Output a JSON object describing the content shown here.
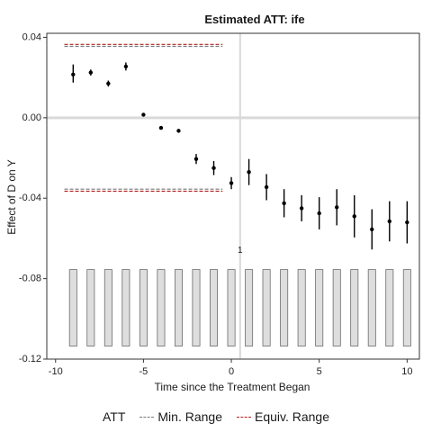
{
  "chart_data": {
    "type": "scatter",
    "title": "Estimated ATT: ife",
    "xlabel": "Time since the Treatment Began",
    "ylabel": "Effect of D on Y",
    "xlim": [
      -10.5,
      10.7
    ],
    "ylim": [
      -0.12,
      0.042
    ],
    "x_ticks": [
      -10,
      -5,
      0,
      5,
      10
    ],
    "x_tick_labels": [
      "-10",
      "-5",
      "0",
      "5",
      "10"
    ],
    "y_ticks": [
      0.04,
      0.0,
      -0.04,
      -0.08,
      -0.12
    ],
    "y_tick_labels": [
      "0.04",
      "0.00",
      "-0.04",
      "-0.08",
      "-0.12"
    ],
    "grid": false,
    "points": [
      {
        "x": -9,
        "y": 0.0215,
        "lo": 0.0175,
        "hi": 0.0265
      },
      {
        "x": -8,
        "y": 0.0225,
        "lo": 0.021,
        "hi": 0.024
      },
      {
        "x": -7,
        "y": 0.017,
        "lo": 0.0155,
        "hi": 0.0185
      },
      {
        "x": -6,
        "y": 0.0255,
        "lo": 0.0235,
        "hi": 0.0275
      },
      {
        "x": -5,
        "y": 0.0015,
        "lo": 0.001,
        "hi": 0.002
      },
      {
        "x": -4,
        "y": -0.005,
        "lo": -0.0055,
        "hi": -0.0045
      },
      {
        "x": -3,
        "y": -0.0065,
        "lo": -0.007,
        "hi": -0.006
      },
      {
        "x": -2,
        "y": -0.0205,
        "lo": -0.023,
        "hi": -0.018
      },
      {
        "x": -1,
        "y": -0.025,
        "lo": -0.0285,
        "hi": -0.0215
      },
      {
        "x": 0,
        "y": -0.0325,
        "lo": -0.0355,
        "hi": -0.0295
      },
      {
        "x": 1,
        "y": -0.027,
        "lo": -0.0335,
        "hi": -0.0205
      },
      {
        "x": 2,
        "y": -0.0345,
        "lo": -0.041,
        "hi": -0.028
      },
      {
        "x": 3,
        "y": -0.0425,
        "lo": -0.0495,
        "hi": -0.0355
      },
      {
        "x": 4,
        "y": -0.045,
        "lo": -0.0515,
        "hi": -0.0385
      },
      {
        "x": 5,
        "y": -0.0475,
        "lo": -0.0555,
        "hi": -0.0395
      },
      {
        "x": 6,
        "y": -0.0445,
        "lo": -0.0535,
        "hi": -0.0355
      },
      {
        "x": 7,
        "y": -0.049,
        "lo": -0.0595,
        "hi": -0.0385
      },
      {
        "x": 8,
        "y": -0.0555,
        "lo": -0.0655,
        "hi": -0.0455
      },
      {
        "x": 9,
        "y": -0.0515,
        "lo": -0.0615,
        "hi": -0.0415
      },
      {
        "x": 10,
        "y": -0.052,
        "lo": -0.0625,
        "hi": -0.0415
      }
    ],
    "zero_line_y": 0.0,
    "vertical_line_x": 0.5,
    "min_range": {
      "upper": 0.0355,
      "lower": -0.0355,
      "x_start": -9.5,
      "x_end": -0.5
    },
    "equiv_range": {
      "upper": 0.0365,
      "lower": -0.0365,
      "x_start": -9.5,
      "x_end": -0.5
    },
    "annotation": {
      "text": "1",
      "x": 0.5,
      "y": -0.066
    },
    "count_bars": {
      "x": [
        -9,
        -8,
        -7,
        -6,
        -5,
        -4,
        -3,
        -2,
        -1,
        0,
        1,
        2,
        3,
        4,
        5,
        6,
        7,
        8,
        9,
        10
      ],
      "bottom": -0.1135,
      "top": -0.0755
    },
    "legend": {
      "placement": "bottom",
      "entries": [
        {
          "label": "ATT",
          "key": "none"
        },
        {
          "label": "Min. Range",
          "key": "dashed",
          "color": "#7a7a7a"
        },
        {
          "label": "Equiv. Range",
          "key": "dashed",
          "color": "#b22222"
        }
      ]
    },
    "colors": {
      "point": "#000000",
      "zero_line": "#d9d9d9",
      "vertical_line": "#d9d9d9",
      "min_range": "#7a7a7a",
      "equiv_range": "#b22222",
      "count_bar_fill": "#dedede",
      "count_bar_stroke": "#6b6b6b",
      "panel_border": "#333333"
    }
  }
}
